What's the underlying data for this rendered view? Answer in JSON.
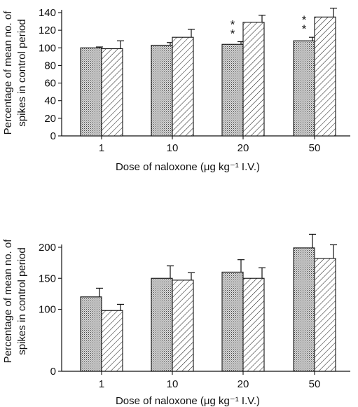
{
  "chart_data": [
    {
      "type": "bar",
      "categories": [
        "1",
        "10",
        "20",
        "50"
      ],
      "series": [
        {
          "values": [
            100,
            103,
            104,
            108
          ],
          "errors": [
            1,
            3,
            3,
            4
          ],
          "pattern": "dotted"
        },
        {
          "values": [
            99,
            112,
            129,
            135
          ],
          "errors": [
            9,
            9,
            8,
            10
          ],
          "pattern": "hatched"
        }
      ],
      "significance": [
        {
          "category": "20",
          "series": 0,
          "label": "**"
        },
        {
          "category": "50",
          "series": 0,
          "label": "**"
        }
      ],
      "ylabel": [
        "Percentage of mean no. of",
        "spikes in control period"
      ],
      "xlabel": "Dose of naloxone (μg kg⁻¹ I.V.)",
      "ylim": [
        0,
        140
      ],
      "yticks": [
        0,
        20,
        40,
        60,
        80,
        100,
        120,
        140
      ],
      "grid": false
    },
    {
      "type": "bar",
      "categories": [
        "1",
        "10",
        "20",
        "50"
      ],
      "series": [
        {
          "values": [
            120,
            150,
            160,
            199
          ],
          "errors": [
            14,
            20,
            20,
            22
          ],
          "pattern": "dotted"
        },
        {
          "values": [
            98,
            147,
            150,
            182
          ],
          "errors": [
            10,
            12,
            17,
            22
          ],
          "pattern": "hatched"
        }
      ],
      "ylabel": [
        "Percentage of mean no. of",
        "spikes in control period"
      ],
      "xlabel": "Dose of naloxone (μg kg⁻¹ I.V.)",
      "ylim": [
        0,
        200
      ],
      "yticks": [
        0,
        100,
        150,
        200
      ],
      "grid": false
    }
  ]
}
